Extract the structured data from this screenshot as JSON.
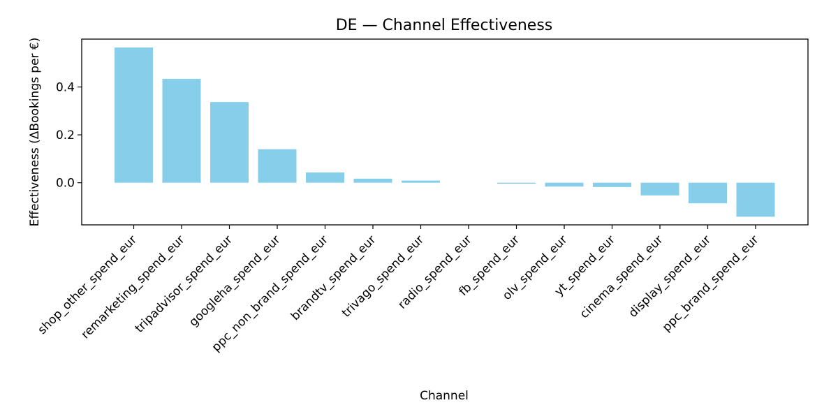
{
  "chart_data": {
    "type": "bar",
    "title": "DE — Channel Effectiveness",
    "xlabel": "Channel",
    "ylabel": "Effectiveness (ΔBookings per €)",
    "categories": [
      "shop_other_spend_eur",
      "remarketing_spend_eur",
      "tripadvisor_spend_eur",
      "googleha_spend_eur",
      "ppc_non_brand_spend_eur",
      "brandtv_spend_eur",
      "trivago_spend_eur",
      "radio_spend_eur",
      "fb_spend_eur",
      "olv_spend_eur",
      "yt_spend_eur",
      "cinema_spend_eur",
      "display_spend_eur",
      "ppc_brand_spend_eur"
    ],
    "values": [
      0.565,
      0.434,
      0.337,
      0.14,
      0.043,
      0.017,
      0.009,
      0.0,
      -0.004,
      -0.016,
      -0.018,
      -0.053,
      -0.086,
      -0.142
    ],
    "yticks": [
      0.0,
      0.2,
      0.4
    ],
    "ytick_labels": [
      "0.0",
      "0.2",
      "0.4"
    ],
    "ylim": [
      -0.176,
      0.6
    ],
    "bar_color": "#87CEEB",
    "grid": false,
    "legend": "none"
  }
}
